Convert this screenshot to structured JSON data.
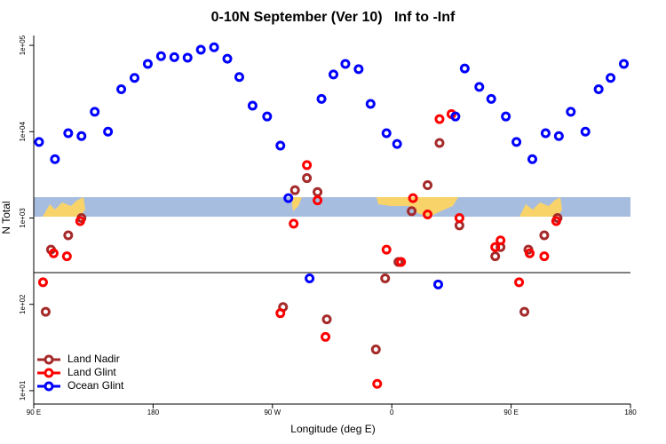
{
  "chart_data": {
    "type": "scatter",
    "title": "0-10N September (Ver 10)   Inf to -Inf",
    "x_label": "Longitude (deg E)",
    "y_label": "N Total",
    "log_y": true,
    "legend": "bottom-left",
    "xlim": [
      90,
      540
    ],
    "ylim": [
      7,
      130000
    ],
    "xticks": [
      {
        "value": 90,
        "label": "90 E"
      },
      {
        "value": 180,
        "label": "180"
      },
      {
        "value": 270,
        "label": "90 W"
      },
      {
        "value": 360,
        "label": "0"
      },
      {
        "value": 450,
        "label": "90 E"
      },
      {
        "value": 540,
        "label": "180"
      }
    ],
    "yticks": [
      {
        "value": 10,
        "label": "1e+01"
      },
      {
        "value": 100,
        "label": "1e+02"
      },
      {
        "value": 1000,
        "label": "1e+03"
      },
      {
        "value": 10000,
        "label": "1e+04"
      },
      {
        "value": 100000,
        "label": "1e+05"
      }
    ],
    "series": [
      {
        "name": "Land Nadir",
        "color": "#a52a2a",
        "x": [
          99,
          103,
          116,
          126,
          278,
          287,
          296,
          304,
          311,
          348,
          355,
          365,
          375,
          387,
          396,
          411,
          438,
          442,
          460,
          463,
          475,
          485
        ],
        "values": [
          82,
          430,
          630,
          1000,
          93,
          2100,
          2900,
          2000,
          67,
          30,
          200,
          310,
          1200,
          2400,
          7400,
          820,
          360,
          460,
          82,
          430,
          630,
          1000
        ]
      },
      {
        "name": "Land Glint",
        "color": "#ff0000",
        "x": [
          97,
          105,
          115,
          125,
          276,
          286,
          296,
          304,
          310,
          349,
          356,
          367,
          376,
          387,
          396,
          405,
          411,
          438,
          442,
          456,
          464,
          475,
          484
        ],
        "values": [
          180,
          390,
          360,
          920,
          79,
          860,
          4100,
          1600,
          42,
          12,
          430,
          310,
          1700,
          1100,
          14000,
          16000,
          1000,
          460,
          550,
          180,
          390,
          360,
          920
        ]
      },
      {
        "name": "Ocean Glint",
        "color": "#0000ff",
        "x": [
          94,
          106,
          116,
          126,
          136,
          146,
          156,
          166,
          176,
          186,
          196,
          206,
          216,
          226,
          236,
          245,
          255,
          266,
          276,
          282,
          298,
          307,
          316,
          325,
          335,
          344,
          356,
          364,
          395,
          408,
          415,
          426,
          435,
          446,
          454,
          466,
          476,
          486,
          495,
          506,
          516,
          525,
          535
        ],
        "values": [
          7600,
          4800,
          9600,
          8900,
          17000,
          10000,
          31000,
          42000,
          61000,
          75000,
          73000,
          72000,
          89000,
          95000,
          70000,
          43000,
          20000,
          15000,
          6900,
          1700,
          200,
          24000,
          46000,
          61000,
          53000,
          21000,
          9600,
          7200,
          170,
          15000,
          54000,
          33000,
          24000,
          15000,
          7600,
          4800,
          9600,
          8900,
          17000,
          10000,
          31000,
          42000,
          61000
        ]
      }
    ]
  }
}
